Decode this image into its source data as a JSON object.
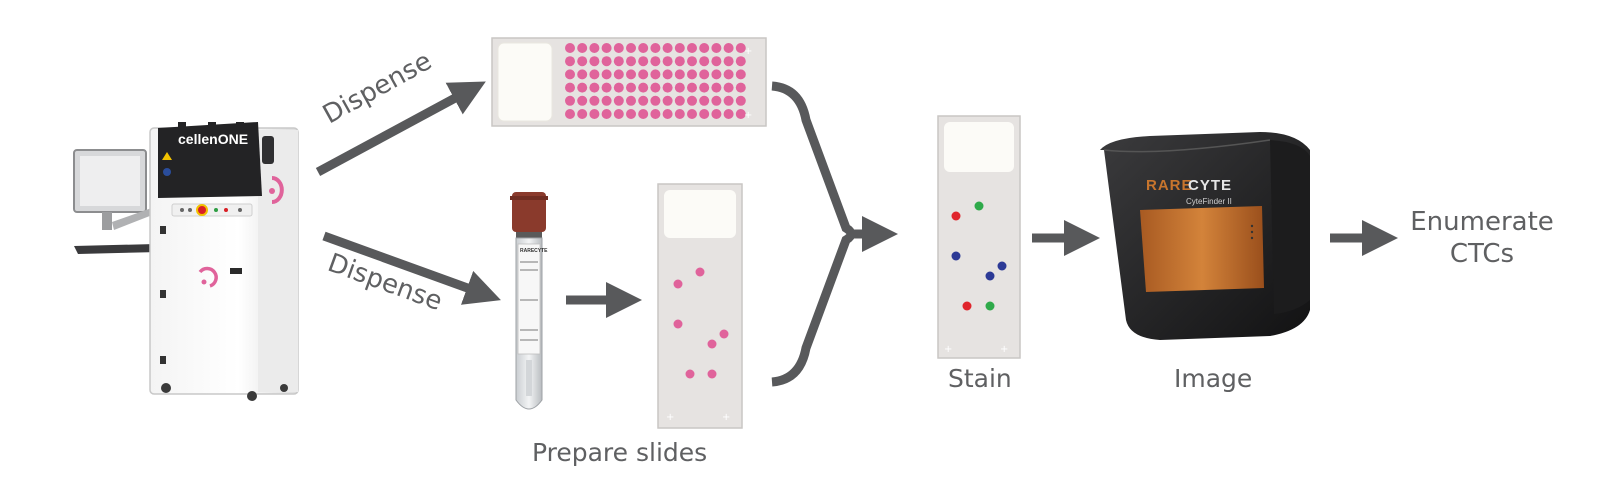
{
  "machine": {
    "brand": "cellenONE"
  },
  "flow": {
    "dispense_top": "Dispense",
    "dispense_bottom": "Dispense",
    "prepare_slides": "Prepare slides",
    "stain": "Stain",
    "image": "Image",
    "enumerate_line1": "Enumerate",
    "enumerate_line2": "CTCs"
  },
  "tube": {
    "brand": "RARECYTE"
  },
  "imager": {
    "brand_rare": "RARE",
    "brand_cyte": "CYTE",
    "model": "CyteFinder II"
  },
  "colors": {
    "arrow": "#58595b",
    "text": "#5f6062",
    "pink_dot": "#e0639b",
    "stain_red": "#e0252c",
    "stain_green": "#2faa4a",
    "stain_blue": "#2c3a96",
    "slide_bg": "#e6e3e1",
    "imager_orange": "#c7752d"
  }
}
